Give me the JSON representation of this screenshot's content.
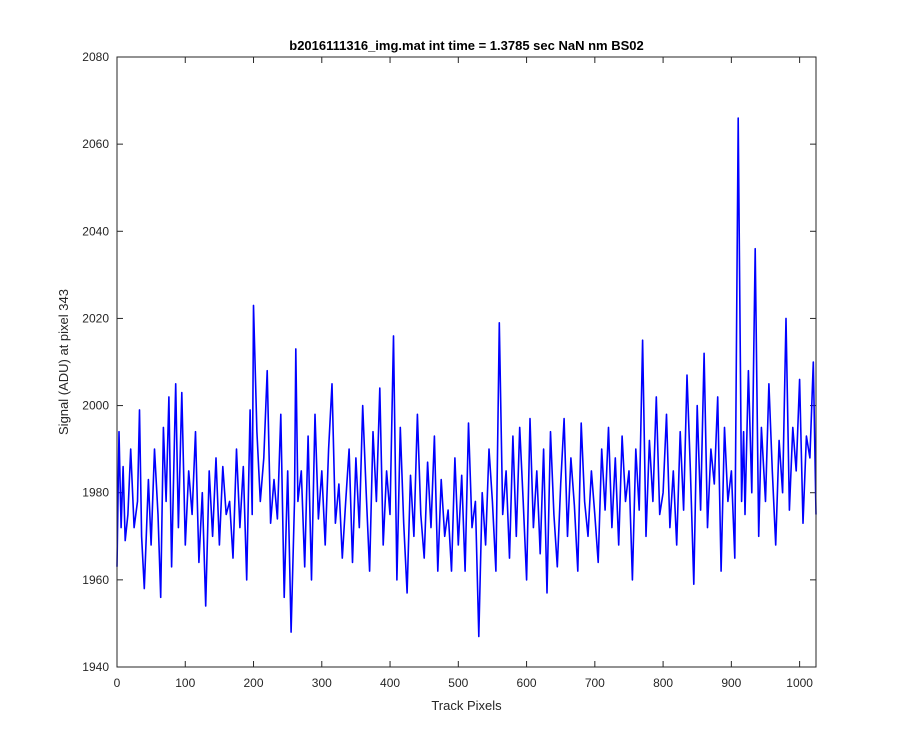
{
  "chart_data": {
    "type": "line",
    "title": "b2016111316_img.mat int time = 1.3785 sec  NaN nm BS02",
    "xlabel": "Track Pixels",
    "ylabel": "Signal (ADU) at pixel 343",
    "xlim": [
      0,
      1024
    ],
    "ylim": [
      1940,
      2080
    ],
    "xticks": [
      "0",
      "100",
      "200",
      "300",
      "400",
      "500",
      "600",
      "700",
      "800",
      "900",
      "1000"
    ],
    "yticks": [
      "1940",
      "1960",
      "1980",
      "2000",
      "2020",
      "2040",
      "2060",
      "2080"
    ],
    "grid": false,
    "line_color": "#0000ff",
    "series": [
      {
        "x": [
          0,
          3,
          6,
          9,
          12,
          16,
          20,
          25,
          30,
          33,
          36,
          40,
          46,
          50,
          55,
          60,
          64,
          68,
          72,
          76,
          80,
          86,
          90,
          95,
          100,
          105,
          110,
          115,
          120,
          125,
          130,
          135,
          140,
          145,
          150,
          155,
          160,
          165,
          170,
          175,
          180,
          185,
          190,
          195,
          198,
          200,
          205,
          210,
          215,
          220,
          225,
          230,
          235,
          240,
          245,
          250,
          255,
          260,
          262,
          265,
          270,
          275,
          280,
          285,
          290,
          295,
          300,
          305,
          310,
          315,
          320,
          325,
          330,
          335,
          340,
          345,
          350,
          355,
          360,
          365,
          370,
          375,
          380,
          385,
          390,
          395,
          400,
          405,
          410,
          415,
          420,
          425,
          430,
          435,
          440,
          445,
          450,
          455,
          460,
          465,
          470,
          475,
          480,
          485,
          490,
          495,
          500,
          505,
          510,
          515,
          520,
          525,
          530,
          535,
          540,
          545,
          550,
          555,
          560,
          565,
          570,
          575,
          580,
          585,
          590,
          595,
          600,
          605,
          610,
          615,
          620,
          625,
          630,
          635,
          640,
          645,
          650,
          655,
          660,
          665,
          670,
          675,
          680,
          685,
          690,
          695,
          700,
          705,
          710,
          715,
          720,
          725,
          730,
          735,
          740,
          745,
          750,
          755,
          760,
          765,
          770,
          775,
          780,
          785,
          790,
          795,
          800,
          805,
          810,
          815,
          820,
          825,
          830,
          835,
          840,
          845,
          850,
          855,
          860,
          865,
          870,
          875,
          880,
          885,
          890,
          895,
          900,
          905,
          910,
          915,
          918,
          920,
          925,
          930,
          935,
          940,
          944,
          950,
          955,
          960,
          965,
          970,
          975,
          980,
          985,
          990,
          995,
          1000,
          1005,
          1010,
          1015,
          1020,
          1024
        ],
        "y": [
          1963,
          1994,
          1972,
          1986,
          1969,
          1975,
          1990,
          1972,
          1978,
          1999,
          1970,
          1958,
          1983,
          1968,
          1990,
          1975,
          1956,
          1995,
          1978,
          2002,
          1963,
          2005,
          1972,
          2003,
          1968,
          1985,
          1975,
          1994,
          1964,
          1980,
          1954,
          1985,
          1970,
          1988,
          1968,
          1986,
          1975,
          1978,
          1965,
          1990,
          1972,
          1986,
          1960,
          1999,
          1975,
          2023,
          1994,
          1978,
          1988,
          2008,
          1973,
          1983,
          1974,
          1998,
          1956,
          1985,
          1948,
          1978,
          2013,
          1978,
          1985,
          1963,
          1993,
          1960,
          1998,
          1974,
          1985,
          1968,
          1990,
          2005,
          1973,
          1982,
          1965,
          1978,
          1990,
          1964,
          1988,
          1972,
          2000,
          1980,
          1962,
          1994,
          1978,
          2004,
          1968,
          1985,
          1975,
          2016,
          1960,
          1995,
          1973,
          1957,
          1984,
          1970,
          1998,
          1975,
          1965,
          1987,
          1972,
          1993,
          1962,
          1983,
          1970,
          1976,
          1962,
          1988,
          1968,
          1984,
          1962,
          1996,
          1972,
          1978,
          1947,
          1980,
          1968,
          1990,
          1978,
          1962,
          2019,
          1975,
          1985,
          1965,
          1993,
          1970,
          1995,
          1978,
          1960,
          1997,
          1972,
          1985,
          1966,
          1990,
          1957,
          1994,
          1975,
          1963,
          1982,
          1997,
          1970,
          1988,
          1977,
          1962,
          1996,
          1978,
          1970,
          1985,
          1975,
          1964,
          1990,
          1976,
          1995,
          1972,
          1988,
          1968,
          1993,
          1978,
          1985,
          1960,
          1990,
          1976,
          2015,
          1970,
          1992,
          1978,
          2002,
          1975,
          1980,
          1998,
          1972,
          1985,
          1968,
          1994,
          1976,
          2007,
          1985,
          1959,
          2000,
          1976,
          2012,
          1972,
          1990,
          1982,
          2002,
          1962,
          1995,
          1978,
          1985,
          1965,
          2066,
          1978,
          1994,
          1975,
          2008,
          1980,
          2036,
          1970,
          1995,
          1978,
          2005,
          1985,
          1968,
          1992,
          1980,
          2020,
          1976,
          1995,
          1985,
          2006,
          1973,
          1993,
          1988,
          2010,
          1975
        ]
      }
    ]
  }
}
